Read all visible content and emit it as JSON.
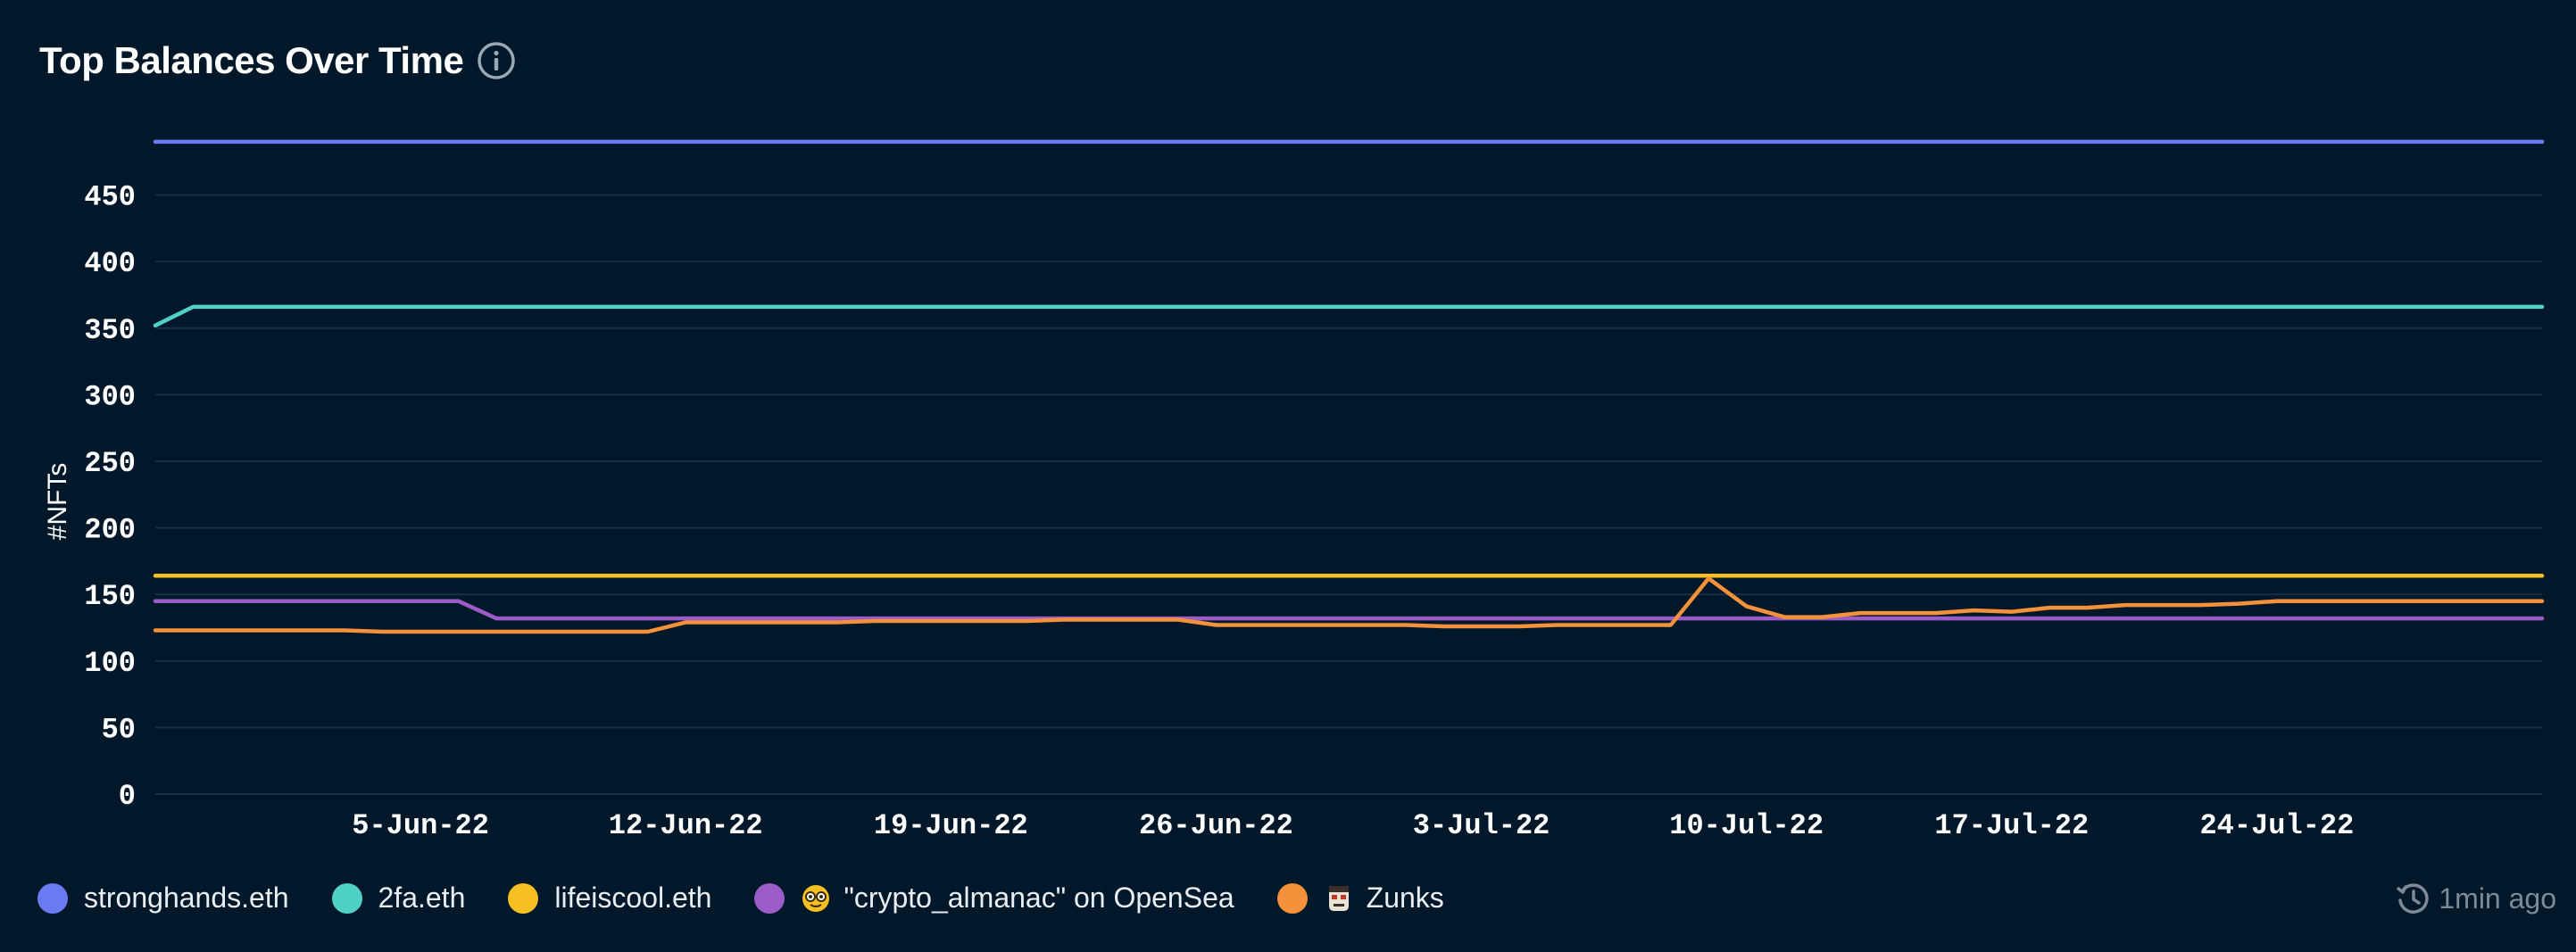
{
  "header": {
    "title": "Top Balances Over Time",
    "info_icon": "info-circle-icon"
  },
  "status": {
    "updated_text": "1min ago",
    "icon": "history-clock-icon"
  },
  "colors": {
    "background": "#01172a",
    "grid": "#173047",
    "tick_text": "#ffffff"
  },
  "chart_data": {
    "type": "line",
    "title": "Top Balances Over Time",
    "xlabel": "",
    "ylabel": "#NFTs",
    "ylim": [
      0,
      500
    ],
    "xlim": [
      "2022-05-29",
      "2022-07-31"
    ],
    "yticks": [
      0,
      50,
      100,
      150,
      200,
      250,
      300,
      350,
      400,
      450
    ],
    "xticks": [
      {
        "date": "2022-06-05",
        "label": "5-Jun-22"
      },
      {
        "date": "2022-06-12",
        "label": "12-Jun-22"
      },
      {
        "date": "2022-06-19",
        "label": "19-Jun-22"
      },
      {
        "date": "2022-06-26",
        "label": "26-Jun-22"
      },
      {
        "date": "2022-07-03",
        "label": "3-Jul-22"
      },
      {
        "date": "2022-07-10",
        "label": "10-Jul-22"
      },
      {
        "date": "2022-07-17",
        "label": "17-Jul-22"
      },
      {
        "date": "2022-07-24",
        "label": "24-Jul-22"
      }
    ],
    "grid": true,
    "legend": "bottom-left",
    "series": [
      {
        "name": "stronghands.eth",
        "color": "#6b7cf3",
        "emoji": "",
        "points": [
          [
            "2022-05-29",
            490
          ],
          [
            "2022-07-31",
            490
          ]
        ]
      },
      {
        "name": "2fa.eth",
        "color": "#4fd1c5",
        "emoji": "",
        "points": [
          [
            "2022-05-29",
            352
          ],
          [
            "2022-05-30",
            366
          ],
          [
            "2022-07-31",
            366
          ]
        ]
      },
      {
        "name": "lifeiscool.eth",
        "color": "#f6c023",
        "emoji": "",
        "points": [
          [
            "2022-05-29",
            164
          ],
          [
            "2022-07-31",
            164
          ]
        ]
      },
      {
        "name": "\"crypto_almanac\" on OpenSea",
        "color": "#9b5cc7",
        "emoji": "almanac",
        "points": [
          [
            "2022-05-29",
            145
          ],
          [
            "2022-06-06",
            145
          ],
          [
            "2022-06-07",
            132
          ],
          [
            "2022-07-31",
            132
          ]
        ]
      },
      {
        "name": "Zunks",
        "color": "#f4923b",
        "emoji": "zunk",
        "points": [
          [
            "2022-05-29",
            123
          ],
          [
            "2022-06-03",
            123
          ],
          [
            "2022-06-04",
            122
          ],
          [
            "2022-06-11",
            122
          ],
          [
            "2022-06-12",
            129
          ],
          [
            "2022-06-16",
            129
          ],
          [
            "2022-06-17",
            130
          ],
          [
            "2022-06-21",
            130
          ],
          [
            "2022-06-22",
            131
          ],
          [
            "2022-06-25",
            131
          ],
          [
            "2022-06-26",
            127
          ],
          [
            "2022-07-01",
            127
          ],
          [
            "2022-07-02",
            126
          ],
          [
            "2022-07-04",
            126
          ],
          [
            "2022-07-05",
            127
          ],
          [
            "2022-07-08",
            127
          ],
          [
            "2022-07-09",
            162
          ],
          [
            "2022-07-10",
            141
          ],
          [
            "2022-07-11",
            133
          ],
          [
            "2022-07-12",
            133
          ],
          [
            "2022-07-13",
            136
          ],
          [
            "2022-07-15",
            136
          ],
          [
            "2022-07-16",
            138
          ],
          [
            "2022-07-17",
            137
          ],
          [
            "2022-07-18",
            140
          ],
          [
            "2022-07-19",
            140
          ],
          [
            "2022-07-20",
            142
          ],
          [
            "2022-07-22",
            142
          ],
          [
            "2022-07-23",
            143
          ],
          [
            "2022-07-24",
            145
          ],
          [
            "2022-07-31",
            145
          ]
        ]
      }
    ]
  }
}
